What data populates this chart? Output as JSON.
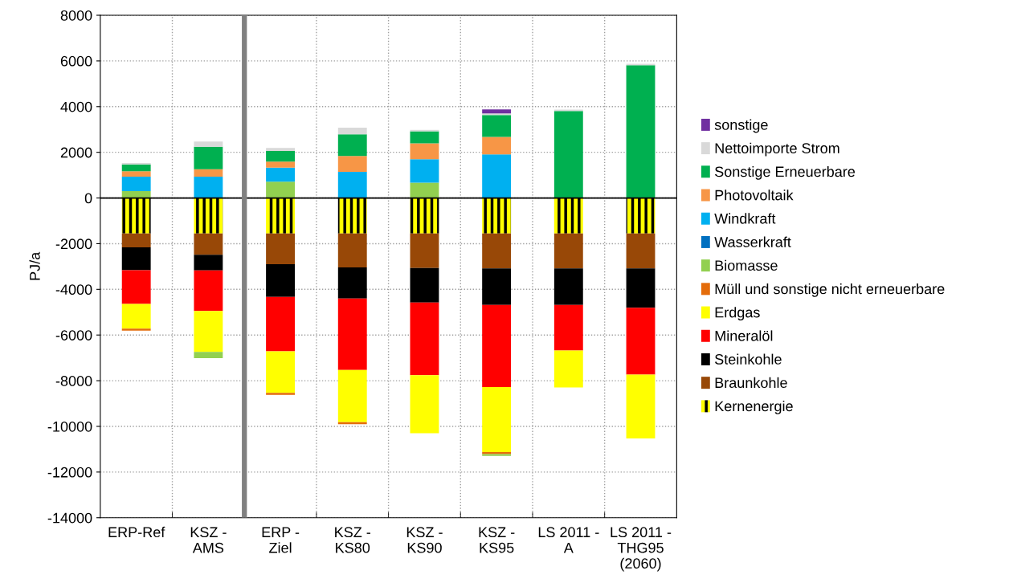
{
  "chart_data": {
    "type": "bar",
    "stacked": true,
    "ylabel": "PJ/a",
    "categories": [
      "ERP-Ref",
      "KSZ - AMS",
      "ERP - Ziel",
      "KSZ - KS80",
      "KSZ - KS90",
      "KSZ - KS95",
      "LS 2011 - A",
      "LS 2011 - THG95 (2060)"
    ],
    "ylim": [
      -14000,
      8000
    ],
    "yticks": [
      -14000,
      -12000,
      -10000,
      -8000,
      -6000,
      -4000,
      -2000,
      0,
      2000,
      4000,
      6000,
      8000
    ],
    "grid": true,
    "legend": "right",
    "series": [
      {
        "name": "Kernenergie",
        "color": "#ffff00",
        "values": [
          -1550,
          -1550,
          -1550,
          -1550,
          -1550,
          -1550,
          -1550,
          -1550
        ]
      },
      {
        "name": "Braunkohle",
        "color": "#984807",
        "values": [
          -610,
          -940,
          -1350,
          -1490,
          -1520,
          -1530,
          -1530,
          -1530
        ]
      },
      {
        "name": "Steinkohle",
        "color": "#000000",
        "values": [
          -1000,
          -680,
          -1430,
          -1360,
          -1510,
          -1600,
          -1600,
          -1730
        ]
      },
      {
        "name": "Mineralöl",
        "color": "#ff0000",
        "values": [
          -1480,
          -1780,
          -2380,
          -3130,
          -3180,
          -3600,
          -2000,
          -2920
        ]
      },
      {
        "name": "Erdgas",
        "color": "#ffff00",
        "values": [
          -1080,
          -1790,
          -1820,
          -2290,
          -2540,
          -2850,
          -1620,
          -2800
        ]
      },
      {
        "name": "Müll und sonstige nicht erneuerbare",
        "color": "#e46c0a",
        "values": [
          -90,
          null,
          -90,
          -80,
          null,
          -80,
          null,
          null
        ]
      },
      {
        "name": "Biomasse",
        "color": "#92d050",
        "values": [
          300,
          -270,
          710,
          null,
          670,
          -80,
          null,
          null
        ]
      },
      {
        "name": "Wasserkraft",
        "color": "#0070c0",
        "values": [
          null,
          null,
          null,
          null,
          null,
          null,
          null,
          null
        ]
      },
      {
        "name": "Windkraft",
        "color": "#00b0f0",
        "values": [
          630,
          930,
          620,
          1140,
          1030,
          1910,
          null,
          null
        ]
      },
      {
        "name": "Photovoltaik",
        "color": "#f79646",
        "values": [
          240,
          330,
          260,
          700,
          690,
          760,
          null,
          null
        ]
      },
      {
        "name": "Sonstige Erneuerbare",
        "color": "#00b050",
        "values": [
          300,
          980,
          470,
          950,
          530,
          960,
          3810,
          5810
        ]
      },
      {
        "name": "Nettoimporte Strom",
        "color": "#d9d9d9",
        "values": [
          60,
          230,
          130,
          290,
          60,
          70,
          60,
          60
        ]
      },
      {
        "name": "sonstige",
        "color": "#7030a0",
        "values": [
          null,
          null,
          null,
          null,
          null,
          180,
          null,
          null
        ]
      }
    ]
  }
}
